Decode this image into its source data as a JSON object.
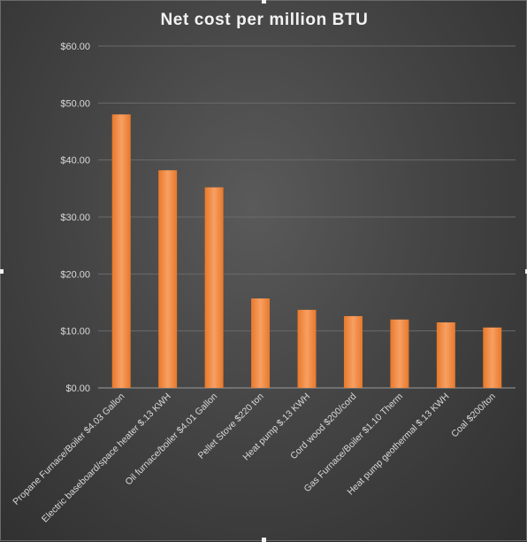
{
  "chart_data": {
    "type": "bar",
    "title": "Net cost per million BTU",
    "categories": [
      "Propane Furnace/Boiler $4.03 Gallon",
      "Electric baseboard/space heater $.13 KWH",
      "Oil furnace/boiler $4.01 Gallon",
      "Pellet Stove $220 ton",
      "Heat pump $.13 KWH",
      "Cord wood $200/cord",
      "Gas Furnace/Boiler $1.10 Therm",
      "Heat pump geothermal $.13 KWH",
      "Coal $200/ton"
    ],
    "values": [
      48.0,
      38.2,
      35.2,
      15.7,
      13.7,
      12.6,
      12.0,
      11.5,
      10.6
    ],
    "ylim": [
      0,
      60
    ],
    "yticks": [
      "$0.00",
      "$10.00",
      "$20.00",
      "$30.00",
      "$40.00",
      "$50.00",
      "$60.00"
    ],
    "xlabel": "",
    "ylabel": "",
    "grid": true,
    "legend": "none",
    "bar_color": "#f08a3c",
    "background_color": "#474747"
  }
}
